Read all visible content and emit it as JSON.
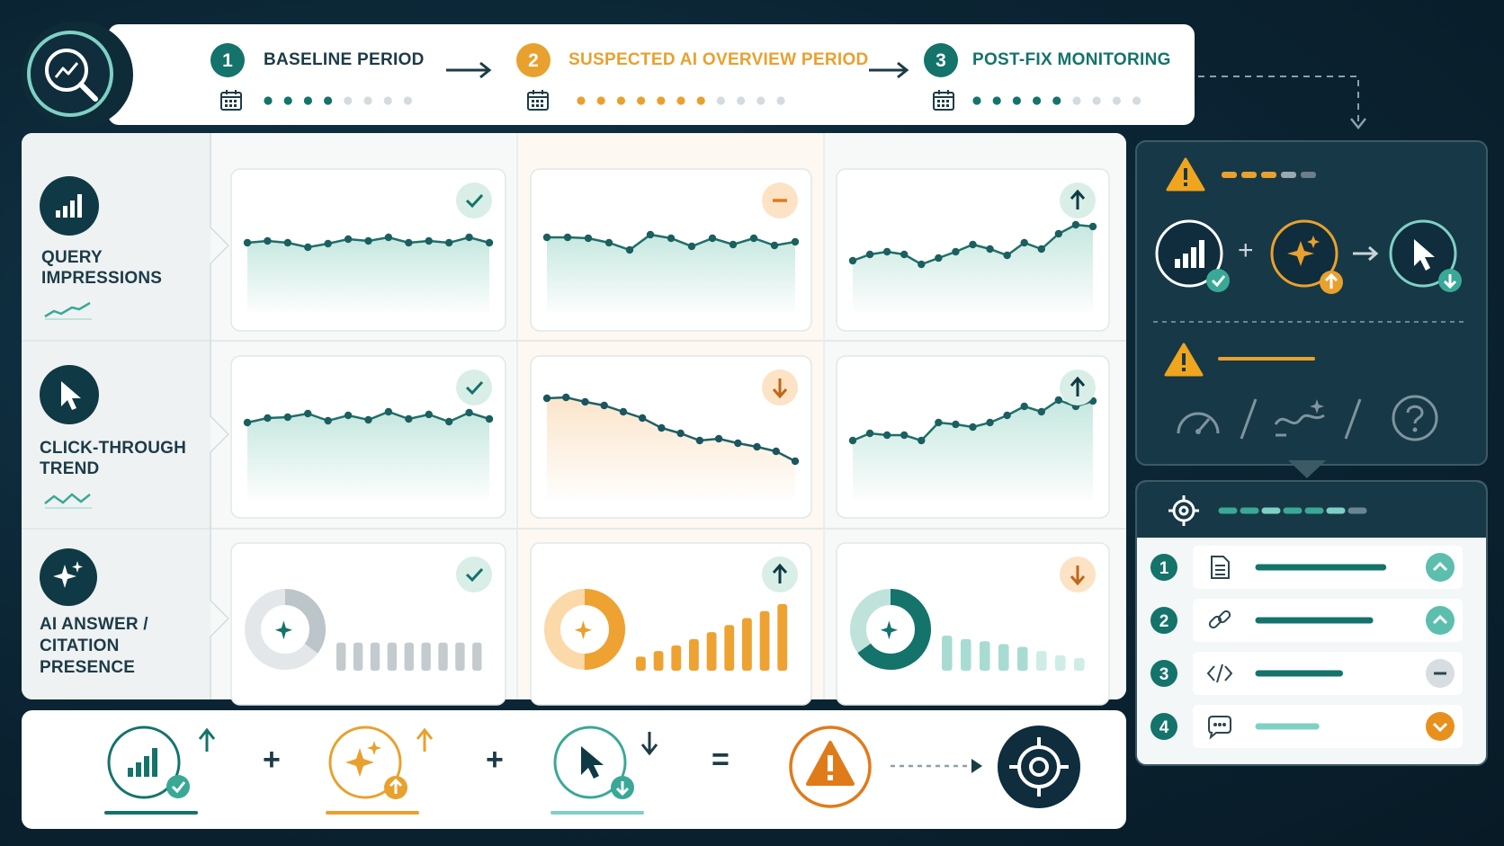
{
  "stages": [
    {
      "number": "1",
      "label": "BASELINE PERIOD",
      "color": "#14736b",
      "filled_dots": 4,
      "total_dots": 8
    },
    {
      "number": "2",
      "label": "SUSPECTED AI OVERVIEW PERIOD",
      "color": "#e8a12e",
      "filled_dots": 7,
      "total_dots": 11
    },
    {
      "number": "3",
      "label": "POST-FIX MONITORING",
      "color": "#14736b",
      "filled_dots": 5,
      "total_dots": 9
    }
  ],
  "rows": [
    {
      "label_lines": [
        "QUERY",
        "IMPRESSIONS"
      ]
    },
    {
      "label_lines": [
        "CLICK-THROUGH",
        "TREND"
      ]
    },
    {
      "label_lines": [
        "AI ANSWER /",
        "CITATION",
        "PRESENCE"
      ]
    }
  ],
  "grid": {
    "row1": [
      {
        "status": "check",
        "points": [
          270,
          268,
          270,
          275,
          271,
          266,
          268,
          264,
          270,
          268,
          270,
          264,
          270
        ]
      },
      {
        "status": "minus",
        "points": [
          264,
          264,
          265,
          270,
          278,
          261,
          265,
          274,
          265,
          272,
          265,
          273,
          269
        ]
      },
      {
        "status": "up",
        "points": [
          290,
          283,
          280,
          283,
          294,
          287,
          280,
          272,
          277,
          284,
          270,
          277,
          260,
          250,
          252
        ]
      }
    ],
    "row2": [
      {
        "status": "check",
        "points": [
          470,
          465,
          464,
          460,
          468,
          462,
          467,
          458,
          466,
          461,
          469,
          459,
          466
        ]
      },
      {
        "status": "down",
        "points": [
          443,
          442,
          447,
          451,
          458,
          465,
          476,
          482,
          490,
          488,
          493,
          497,
          502,
          513
        ]
      },
      {
        "status": "up",
        "points": [
          490,
          482,
          484,
          484,
          490,
          470,
          472,
          475,
          470,
          462,
          452,
          458,
          445,
          452,
          446
        ]
      }
    ],
    "row3": [
      {
        "status": "check",
        "donut_fraction": 0.35,
        "bars": [
          0.4,
          0.4,
          0.4,
          0.4,
          0.4,
          0.4,
          0.4,
          0.4,
          0.4
        ]
      },
      {
        "status": "up",
        "donut_fraction": 0.5,
        "bars": [
          0.2,
          0.28,
          0.36,
          0.45,
          0.55,
          0.65,
          0.75,
          0.85,
          0.95
        ]
      },
      {
        "status": "down",
        "donut_fraction": 0.65,
        "bars": [
          0.5,
          0.45,
          0.42,
          0.38,
          0.34,
          0.28,
          0.22,
          0.16
        ]
      }
    ]
  },
  "colors": {
    "teal": "#14736b",
    "orange": "#e8a12e",
    "navy": "#0f2d3c",
    "lightteal": "#a8dcd2"
  },
  "diagnosis_panel": {
    "top_indicator_segments": [
      "#e8a12e",
      "#e8a12e",
      "#e8a12e",
      "#9aa8b0",
      "#6b7f8a"
    ],
    "bottom_icons": [
      "gauge-icon",
      "slash",
      "trend-spark-icon",
      "slash",
      "question-icon"
    ]
  },
  "action_list": {
    "items": [
      {
        "number": "1",
        "icon": "document-icon",
        "status": "up",
        "bar_width": 0.95
      },
      {
        "number": "2",
        "icon": "link-icon",
        "status": "up",
        "bar_width": 0.85
      },
      {
        "number": "3",
        "icon": "code-icon",
        "status": "neutral",
        "bar_width": 0.62
      },
      {
        "number": "4",
        "icon": "chat-icon",
        "status": "down",
        "bar_width": 0.44
      }
    ]
  },
  "equation": {
    "terms": [
      "impressions-up",
      "ai-answer-up",
      "clicks-down"
    ],
    "operators": [
      "+",
      "+",
      "="
    ],
    "result": "warning-icon",
    "target": "target-icon"
  }
}
